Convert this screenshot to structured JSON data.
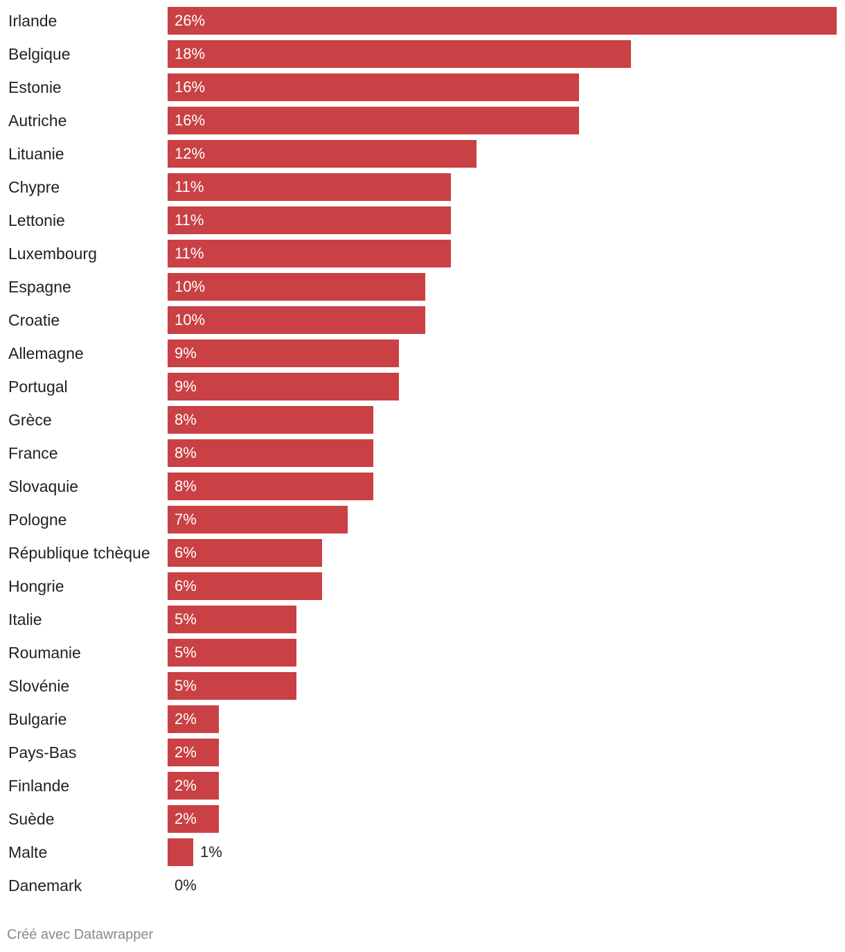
{
  "chart_data": {
    "type": "bar",
    "orientation": "horizontal",
    "categories": [
      "Irlande",
      "Belgique",
      "Estonie",
      "Autriche",
      "Lituanie",
      "Chypre",
      "Lettonie",
      "Luxembourg",
      "Espagne",
      "Croatie",
      "Allemagne",
      "Portugal",
      "Grèce",
      "France",
      "Slovaquie",
      "Pologne",
      "République tchèque",
      "Hongrie",
      "Italie",
      "Roumanie",
      "Slovénie",
      "Bulgarie",
      "Pays-Bas",
      "Finlande",
      "Suède",
      "Malte",
      "Danemark"
    ],
    "values": [
      26,
      18,
      16,
      16,
      12,
      11,
      11,
      11,
      10,
      10,
      9,
      9,
      8,
      8,
      8,
      7,
      6,
      6,
      5,
      5,
      5,
      2,
      2,
      2,
      2,
      1,
      0
    ],
    "value_labels": [
      "26%",
      "18%",
      "16%",
      "16%",
      "12%",
      "11%",
      "11%",
      "11%",
      "10%",
      "10%",
      "9%",
      "9%",
      "8%",
      "8%",
      "8%",
      "7%",
      "6%",
      "6%",
      "5%",
      "5%",
      "5%",
      "2%",
      "2%",
      "2%",
      "2%",
      "1%",
      "0%"
    ],
    "xlim": [
      0,
      26
    ],
    "bar_color": "#c94144",
    "title": "",
    "xlabel": "",
    "ylabel": ""
  },
  "footer": {
    "credit": "Créé avec Datawrapper"
  }
}
